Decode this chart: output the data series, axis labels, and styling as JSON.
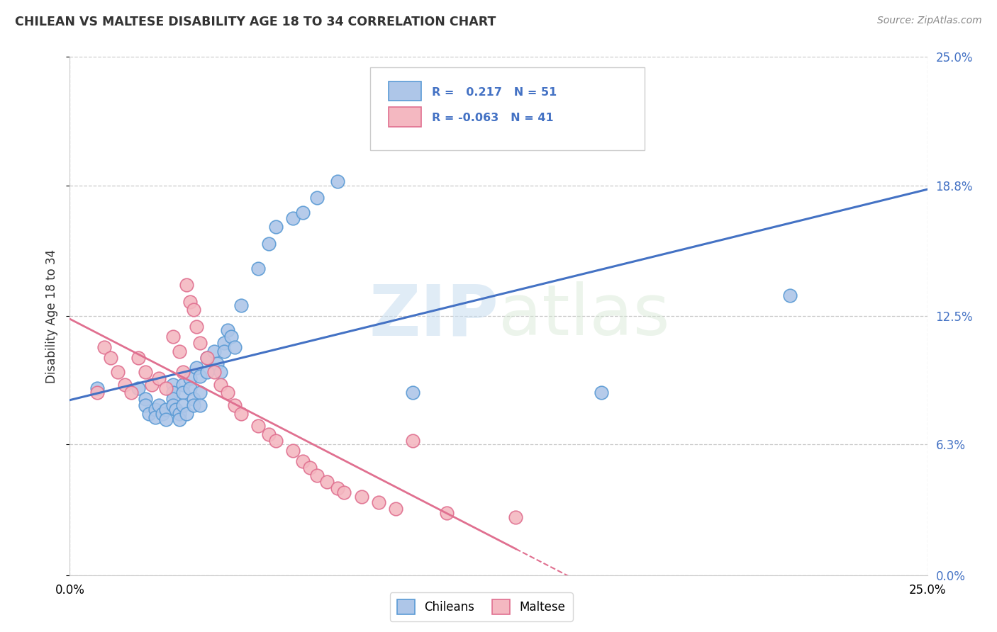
{
  "title": "CHILEAN VS MALTESE DISABILITY AGE 18 TO 34 CORRELATION CHART",
  "source": "Source: ZipAtlas.com",
  "ylabel": "Disability Age 18 to 34",
  "xlim": [
    0.0,
    0.25
  ],
  "ylim": [
    0.0,
    0.25
  ],
  "ytick_values": [
    0.0,
    0.063,
    0.125,
    0.188,
    0.25
  ],
  "ytick_labels": [
    "0.0%",
    "6.3%",
    "12.5%",
    "18.8%",
    "25.0%"
  ],
  "xtick_values": [
    0.0,
    0.25
  ],
  "xtick_labels": [
    "0.0%",
    "25.0%"
  ],
  "chilean_color": "#aec6e8",
  "maltese_color": "#f4b8c1",
  "chilean_edge": "#5b9bd5",
  "maltese_edge": "#e07090",
  "regression_blue": "#4472c4",
  "regression_pink": "#e07090",
  "R_chilean": 0.217,
  "N_chilean": 51,
  "R_maltese": -0.063,
  "N_maltese": 41,
  "background_color": "#ffffff",
  "grid_color": "#c8c8c8",
  "chilean_x": [
    0.008,
    0.02,
    0.022,
    0.022,
    0.023,
    0.025,
    0.025,
    0.026,
    0.027,
    0.028,
    0.028,
    0.03,
    0.03,
    0.03,
    0.03,
    0.031,
    0.032,
    0.032,
    0.033,
    0.033,
    0.033,
    0.034,
    0.035,
    0.035,
    0.036,
    0.036,
    0.037,
    0.038,
    0.038,
    0.038,
    0.04,
    0.04,
    0.042,
    0.043,
    0.044,
    0.045,
    0.045,
    0.046,
    0.047,
    0.048,
    0.05,
    0.055,
    0.058,
    0.06,
    0.065,
    0.068,
    0.072,
    0.078,
    0.1,
    0.155,
    0.21
  ],
  "chilean_y": [
    0.09,
    0.09,
    0.085,
    0.082,
    0.078,
    0.08,
    0.076,
    0.082,
    0.078,
    0.08,
    0.075,
    0.092,
    0.088,
    0.085,
    0.082,
    0.08,
    0.078,
    0.075,
    0.092,
    0.088,
    0.082,
    0.078,
    0.095,
    0.09,
    0.085,
    0.082,
    0.1,
    0.096,
    0.088,
    0.082,
    0.105,
    0.098,
    0.108,
    0.102,
    0.098,
    0.112,
    0.108,
    0.118,
    0.115,
    0.11,
    0.13,
    0.148,
    0.16,
    0.168,
    0.172,
    0.175,
    0.182,
    0.19,
    0.088,
    0.088,
    0.135
  ],
  "maltese_x": [
    0.008,
    0.01,
    0.012,
    0.014,
    0.016,
    0.018,
    0.02,
    0.022,
    0.024,
    0.026,
    0.028,
    0.03,
    0.032,
    0.033,
    0.034,
    0.035,
    0.036,
    0.037,
    0.038,
    0.04,
    0.042,
    0.044,
    0.046,
    0.048,
    0.05,
    0.055,
    0.058,
    0.06,
    0.065,
    0.068,
    0.07,
    0.072,
    0.075,
    0.078,
    0.08,
    0.085,
    0.09,
    0.095,
    0.1,
    0.11,
    0.13
  ],
  "maltese_y": [
    0.088,
    0.11,
    0.105,
    0.098,
    0.092,
    0.088,
    0.105,
    0.098,
    0.092,
    0.095,
    0.09,
    0.115,
    0.108,
    0.098,
    0.14,
    0.132,
    0.128,
    0.12,
    0.112,
    0.105,
    0.098,
    0.092,
    0.088,
    0.082,
    0.078,
    0.072,
    0.068,
    0.065,
    0.06,
    0.055,
    0.052,
    0.048,
    0.045,
    0.042,
    0.04,
    0.038,
    0.035,
    0.032,
    0.065,
    0.03,
    0.028
  ],
  "watermark_text": "ZIPatlas",
  "watermark_zip": "ZIP",
  "watermark_atlas": "atlas"
}
